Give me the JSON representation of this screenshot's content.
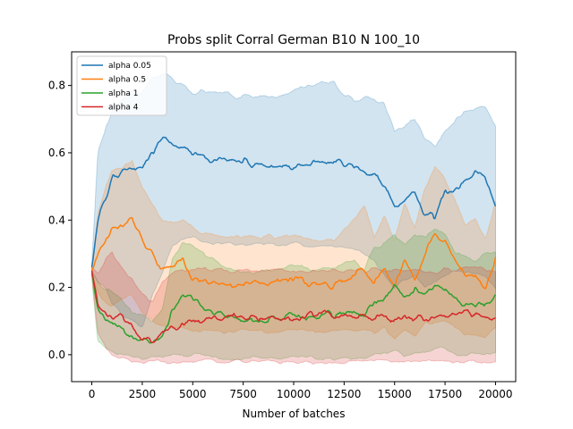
{
  "chart_data": {
    "type": "line",
    "title": "Probs split Corral German B10 N 100_10",
    "xlabel": "Number of batches",
    "ylabel": "",
    "xlim": [
      -1000,
      21000
    ],
    "ylim": [
      -0.08,
      0.9
    ],
    "xticks": [
      0,
      2500,
      5000,
      7500,
      10000,
      12500,
      15000,
      17500,
      20000
    ],
    "xtick_labels": [
      "0",
      "2500",
      "5000",
      "7500",
      "10000",
      "12500",
      "15000",
      "17500",
      "20000"
    ],
    "yticks": [
      0.0,
      0.2,
      0.4,
      0.6,
      0.8
    ],
    "ytick_labels": [
      "0.0",
      "0.2",
      "0.4",
      "0.6",
      "0.8"
    ],
    "grid": false,
    "legend_position": "top-left",
    "series": [
      {
        "name": "alpha 0.05",
        "color": "#1f77b4",
        "x": [
          0,
          300,
          700,
          1000,
          1500,
          2000,
          2500,
          3000,
          3500,
          4000,
          4500,
          5000,
          5500,
          6000,
          7000,
          8000,
          9000,
          10000,
          11000,
          12000,
          12500,
          13000,
          13500,
          14000,
          14500,
          15000,
          15500,
          16000,
          16500,
          17000,
          17500,
          18000,
          18500,
          19000,
          19500,
          20000
        ],
        "mean": [
          0.26,
          0.4,
          0.47,
          0.52,
          0.55,
          0.56,
          0.55,
          0.6,
          0.64,
          0.63,
          0.61,
          0.6,
          0.6,
          0.58,
          0.58,
          0.57,
          0.56,
          0.56,
          0.57,
          0.58,
          0.57,
          0.56,
          0.55,
          0.54,
          0.5,
          0.44,
          0.46,
          0.48,
          0.42,
          0.41,
          0.48,
          0.5,
          0.52,
          0.54,
          0.53,
          0.44
        ],
        "lower": [
          0.25,
          0.22,
          0.2,
          0.15,
          0.12,
          0.1,
          0.08,
          0.18,
          0.25,
          0.33,
          0.34,
          0.35,
          0.34,
          0.33,
          0.33,
          0.33,
          0.33,
          0.33,
          0.32,
          0.32,
          0.32,
          0.31,
          0.3,
          0.28,
          0.24,
          0.2,
          0.22,
          0.24,
          0.2,
          0.22,
          0.24,
          0.25,
          0.25,
          0.24,
          0.23,
          0.2
        ],
        "upper": [
          0.27,
          0.6,
          0.68,
          0.72,
          0.76,
          0.78,
          0.78,
          0.82,
          0.84,
          0.82,
          0.8,
          0.78,
          0.78,
          0.78,
          0.77,
          0.77,
          0.77,
          0.78,
          0.8,
          0.81,
          0.77,
          0.76,
          0.76,
          0.76,
          0.74,
          0.66,
          0.68,
          0.7,
          0.64,
          0.62,
          0.67,
          0.7,
          0.72,
          0.73,
          0.74,
          0.68
        ]
      },
      {
        "name": "alpha 0.5",
        "color": "#ff7f0e",
        "x": [
          0,
          300,
          700,
          1000,
          1500,
          2000,
          2500,
          3000,
          3500,
          4000,
          4500,
          5000,
          5500,
          6000,
          7000,
          8000,
          9000,
          10000,
          11000,
          12000,
          12500,
          13000,
          13500,
          14000,
          14500,
          15000,
          15500,
          16000,
          16500,
          17000,
          17500,
          18000,
          18500,
          19000,
          19500,
          20000
        ],
        "mean": [
          0.25,
          0.3,
          0.34,
          0.37,
          0.38,
          0.41,
          0.34,
          0.3,
          0.25,
          0.26,
          0.28,
          0.23,
          0.22,
          0.22,
          0.21,
          0.21,
          0.22,
          0.22,
          0.21,
          0.2,
          0.22,
          0.24,
          0.26,
          0.21,
          0.26,
          0.2,
          0.28,
          0.22,
          0.3,
          0.36,
          0.33,
          0.28,
          0.23,
          0.24,
          0.2,
          0.29
        ],
        "lower": [
          0.24,
          0.18,
          0.15,
          0.15,
          0.17,
          0.18,
          0.12,
          0.1,
          0.08,
          0.08,
          0.08,
          0.07,
          0.07,
          0.07,
          0.07,
          0.07,
          0.07,
          0.07,
          0.07,
          0.07,
          0.07,
          0.07,
          0.08,
          0.06,
          0.08,
          0.05,
          0.08,
          0.06,
          0.09,
          0.1,
          0.1,
          0.08,
          0.06,
          0.06,
          0.05,
          0.08
        ],
        "upper": [
          0.26,
          0.42,
          0.5,
          0.54,
          0.56,
          0.58,
          0.5,
          0.45,
          0.4,
          0.39,
          0.4,
          0.38,
          0.36,
          0.36,
          0.35,
          0.35,
          0.35,
          0.35,
          0.34,
          0.34,
          0.37,
          0.4,
          0.44,
          0.35,
          0.42,
          0.34,
          0.45,
          0.38,
          0.5,
          0.56,
          0.52,
          0.46,
          0.38,
          0.4,
          0.34,
          0.46
        ]
      },
      {
        "name": "alpha 1",
        "color": "#2ca02c",
        "x": [
          0,
          300,
          700,
          1000,
          1500,
          2000,
          2500,
          3000,
          3500,
          4000,
          4500,
          5000,
          5500,
          6000,
          7000,
          8000,
          9000,
          10000,
          11000,
          12000,
          12500,
          13000,
          13500,
          14000,
          14500,
          15000,
          15500,
          16000,
          16500,
          17000,
          17500,
          18000,
          18500,
          19000,
          19500,
          20000
        ],
        "mean": [
          0.24,
          0.13,
          0.1,
          0.09,
          0.07,
          0.05,
          0.04,
          0.03,
          0.05,
          0.13,
          0.17,
          0.16,
          0.14,
          0.13,
          0.11,
          0.1,
          0.11,
          0.12,
          0.11,
          0.12,
          0.12,
          0.13,
          0.11,
          0.16,
          0.17,
          0.2,
          0.17,
          0.19,
          0.19,
          0.21,
          0.2,
          0.16,
          0.15,
          0.14,
          0.16,
          0.17
        ],
        "lower": [
          0.23,
          0.04,
          0.02,
          0.01,
          0.0,
          -0.01,
          -0.01,
          -0.01,
          -0.01,
          0.0,
          0.0,
          0.0,
          0.0,
          -0.01,
          -0.01,
          -0.01,
          -0.01,
          -0.01,
          -0.01,
          -0.01,
          -0.01,
          -0.01,
          -0.01,
          0.0,
          0.0,
          0.01,
          0.0,
          0.01,
          0.01,
          0.02,
          0.02,
          0.0,
          0.0,
          0.0,
          0.0,
          0.01
        ],
        "upper": [
          0.25,
          0.22,
          0.19,
          0.18,
          0.16,
          0.13,
          0.12,
          0.1,
          0.14,
          0.28,
          0.33,
          0.32,
          0.3,
          0.28,
          0.25,
          0.24,
          0.25,
          0.27,
          0.25,
          0.26,
          0.27,
          0.28,
          0.25,
          0.32,
          0.33,
          0.36,
          0.32,
          0.35,
          0.35,
          0.37,
          0.36,
          0.3,
          0.29,
          0.28,
          0.3,
          0.3
        ]
      },
      {
        "name": "alpha 4",
        "color": "#d62728",
        "x": [
          0,
          300,
          700,
          1000,
          1500,
          2000,
          2500,
          3000,
          3500,
          4000,
          4500,
          5000,
          5500,
          6000,
          7000,
          8000,
          9000,
          10000,
          11000,
          12000,
          12500,
          13000,
          13500,
          14000,
          14500,
          15000,
          15500,
          16000,
          16500,
          17000,
          17500,
          18000,
          18500,
          19000,
          19500,
          20000
        ],
        "mean": [
          0.25,
          0.14,
          0.12,
          0.11,
          0.12,
          0.08,
          0.05,
          0.04,
          0.06,
          0.08,
          0.09,
          0.1,
          0.1,
          0.11,
          0.11,
          0.11,
          0.11,
          0.11,
          0.12,
          0.12,
          0.12,
          0.11,
          0.11,
          0.11,
          0.11,
          0.11,
          0.11,
          0.11,
          0.11,
          0.11,
          0.11,
          0.12,
          0.13,
          0.12,
          0.11,
          0.11
        ],
        "lower": [
          0.24,
          0.06,
          0.02,
          0.0,
          -0.01,
          -0.02,
          -0.02,
          -0.02,
          -0.02,
          -0.02,
          -0.02,
          -0.02,
          -0.02,
          -0.02,
          -0.02,
          -0.02,
          -0.02,
          -0.02,
          -0.02,
          -0.02,
          -0.02,
          -0.02,
          -0.02,
          -0.02,
          -0.02,
          -0.02,
          -0.02,
          -0.02,
          -0.02,
          -0.02,
          -0.02,
          -0.02,
          -0.02,
          -0.02,
          -0.02,
          -0.02
        ],
        "upper": [
          0.26,
          0.24,
          0.28,
          0.3,
          0.26,
          0.22,
          0.18,
          0.16,
          0.22,
          0.24,
          0.25,
          0.25,
          0.25,
          0.25,
          0.25,
          0.25,
          0.25,
          0.25,
          0.25,
          0.25,
          0.25,
          0.25,
          0.25,
          0.25,
          0.25,
          0.25,
          0.25,
          0.25,
          0.25,
          0.25,
          0.25,
          0.25,
          0.26,
          0.26,
          0.25,
          0.25
        ]
      }
    ]
  }
}
